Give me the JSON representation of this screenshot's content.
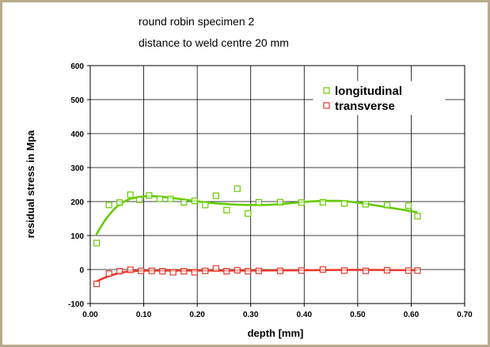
{
  "chart_data": {
    "type": "scatter",
    "title_lines": [
      "round robin specimen 2",
      "distance to weld centre 20 mm"
    ],
    "xlabel": "depth [mm]",
    "ylabel": "residual stress in Mpa",
    "xlim": [
      0.0,
      0.7
    ],
    "ylim": [
      -100,
      600
    ],
    "x_ticks": [
      0.0,
      0.1,
      0.2,
      0.3,
      0.4,
      0.5,
      0.6,
      0.7
    ],
    "x_tick_labels": [
      "0.00",
      "0.10",
      "0.20",
      "0.30",
      "0.40",
      "0.50",
      "0.60",
      "0.70"
    ],
    "y_ticks": [
      -100,
      0,
      100,
      200,
      300,
      400,
      500,
      600
    ],
    "y_tick_labels": [
      "-100",
      "0",
      "100",
      "200",
      "300",
      "400",
      "500",
      "600"
    ],
    "grid": true,
    "legend_position": "top-right",
    "series": [
      {
        "name": "longitudinal",
        "color": "#66cc00",
        "marker": "open-square",
        "points": [
          {
            "x": 0.012,
            "y": 78
          },
          {
            "x": 0.035,
            "y": 190
          },
          {
            "x": 0.055,
            "y": 197
          },
          {
            "x": 0.075,
            "y": 220
          },
          {
            "x": 0.092,
            "y": 205
          },
          {
            "x": 0.11,
            "y": 218
          },
          {
            "x": 0.13,
            "y": 208
          },
          {
            "x": 0.15,
            "y": 208
          },
          {
            "x": 0.175,
            "y": 198
          },
          {
            "x": 0.195,
            "y": 202
          },
          {
            "x": 0.215,
            "y": 190
          },
          {
            "x": 0.235,
            "y": 217
          },
          {
            "x": 0.255,
            "y": 175
          },
          {
            "x": 0.275,
            "y": 238
          },
          {
            "x": 0.295,
            "y": 165
          },
          {
            "x": 0.315,
            "y": 198
          },
          {
            "x": 0.355,
            "y": 198
          },
          {
            "x": 0.395,
            "y": 197
          },
          {
            "x": 0.435,
            "y": 198
          },
          {
            "x": 0.475,
            "y": 195
          },
          {
            "x": 0.515,
            "y": 192
          },
          {
            "x": 0.555,
            "y": 190
          },
          {
            "x": 0.595,
            "y": 188
          },
          {
            "x": 0.612,
            "y": 157
          }
        ],
        "trend": [
          {
            "x": 0.012,
            "y": 105
          },
          {
            "x": 0.03,
            "y": 150
          },
          {
            "x": 0.05,
            "y": 185
          },
          {
            "x": 0.07,
            "y": 205
          },
          {
            "x": 0.09,
            "y": 213
          },
          {
            "x": 0.11,
            "y": 216
          },
          {
            "x": 0.14,
            "y": 213
          },
          {
            "x": 0.18,
            "y": 205
          },
          {
            "x": 0.22,
            "y": 197
          },
          {
            "x": 0.26,
            "y": 192
          },
          {
            "x": 0.3,
            "y": 190
          },
          {
            "x": 0.34,
            "y": 191
          },
          {
            "x": 0.38,
            "y": 196
          },
          {
            "x": 0.42,
            "y": 201
          },
          {
            "x": 0.46,
            "y": 202
          },
          {
            "x": 0.5,
            "y": 197
          },
          {
            "x": 0.54,
            "y": 187
          },
          {
            "x": 0.58,
            "y": 177
          },
          {
            "x": 0.61,
            "y": 169
          }
        ]
      },
      {
        "name": "transverse",
        "color": "#e63b2e",
        "marker": "open-square",
        "points": [
          {
            "x": 0.012,
            "y": -42
          },
          {
            "x": 0.035,
            "y": -12
          },
          {
            "x": 0.055,
            "y": -5
          },
          {
            "x": 0.075,
            "y": -1
          },
          {
            "x": 0.095,
            "y": -4
          },
          {
            "x": 0.115,
            "y": -4
          },
          {
            "x": 0.135,
            "y": -5
          },
          {
            "x": 0.155,
            "y": -8
          },
          {
            "x": 0.175,
            "y": -5
          },
          {
            "x": 0.195,
            "y": -8
          },
          {
            "x": 0.215,
            "y": -4
          },
          {
            "x": 0.235,
            "y": 3
          },
          {
            "x": 0.255,
            "y": -5
          },
          {
            "x": 0.275,
            "y": -2
          },
          {
            "x": 0.295,
            "y": -5
          },
          {
            "x": 0.315,
            "y": -4
          },
          {
            "x": 0.355,
            "y": -4
          },
          {
            "x": 0.395,
            "y": -3
          },
          {
            "x": 0.435,
            "y": 0
          },
          {
            "x": 0.475,
            "y": -3
          },
          {
            "x": 0.515,
            "y": -4
          },
          {
            "x": 0.555,
            "y": -2
          },
          {
            "x": 0.595,
            "y": -3
          },
          {
            "x": 0.612,
            "y": -3
          }
        ],
        "trend": [
          {
            "x": 0.012,
            "y": -35
          },
          {
            "x": 0.03,
            "y": -22
          },
          {
            "x": 0.05,
            "y": -12
          },
          {
            "x": 0.07,
            "y": -6
          },
          {
            "x": 0.09,
            "y": -4
          },
          {
            "x": 0.12,
            "y": -3
          },
          {
            "x": 0.2,
            "y": -3
          },
          {
            "x": 0.3,
            "y": -3
          },
          {
            "x": 0.4,
            "y": -2
          },
          {
            "x": 0.5,
            "y": -1
          },
          {
            "x": 0.61,
            "y": -2
          }
        ]
      }
    ]
  }
}
